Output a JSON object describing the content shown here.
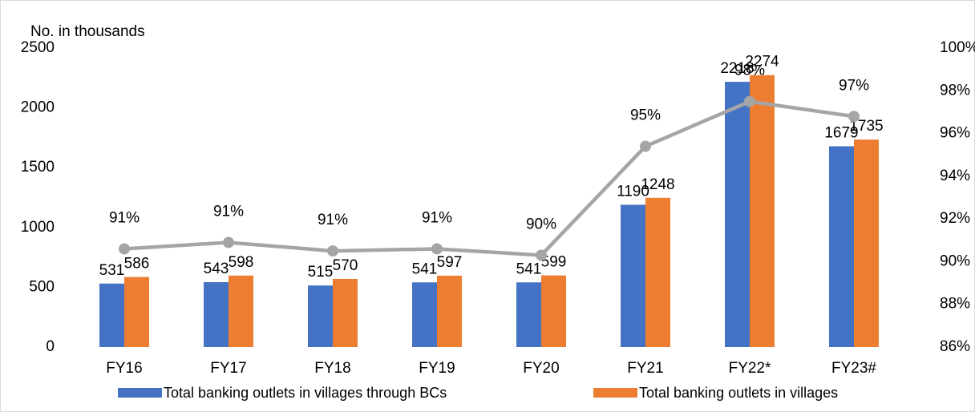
{
  "chart_data": {
    "type": "bar_line",
    "y_label": "No. in thousands",
    "categories": [
      "FY16",
      "FY17",
      "FY18",
      "FY19",
      "FY20",
      "FY21",
      "FY22*",
      "FY23#"
    ],
    "series": [
      {
        "name": "Total banking outlets in villages through BCs",
        "color": "#4472c4",
        "type": "bar",
        "values": [
          531,
          543,
          515,
          541,
          541,
          1190,
          2218,
          1679
        ]
      },
      {
        "name": "Total banking outlets in villages",
        "color": "#ed7d31",
        "type": "bar",
        "values": [
          586,
          598,
          570,
          597,
          599,
          1248,
          2274,
          1735
        ]
      },
      {
        "color": "#a5a5a5",
        "type": "line",
        "axis": "y2",
        "values": [
          90.6,
          90.9,
          90.5,
          90.6,
          90.3,
          95.4,
          97.5,
          96.8
        ],
        "value_labels": [
          "91%",
          "91%",
          "91%",
          "91%",
          "90%",
          "95%",
          "98%",
          "97%"
        ]
      }
    ],
    "ylim": [
      0,
      2500
    ],
    "yticks": [
      0,
      500,
      1000,
      1500,
      2000,
      2500
    ],
    "y2lim": [
      86,
      100
    ],
    "y2ticks": [
      {
        "value": 86,
        "label": "86%"
      },
      {
        "value": 88,
        "label": "88%"
      },
      {
        "value": 90,
        "label": "90%"
      },
      {
        "value": 92,
        "label": "92%"
      },
      {
        "value": 94,
        "label": "94%"
      },
      {
        "value": 96,
        "label": "96%"
      },
      {
        "value": 98,
        "label": "98%"
      },
      {
        "value": 100,
        "label": "100%"
      }
    ],
    "grid": false,
    "legend": "bottom"
  }
}
